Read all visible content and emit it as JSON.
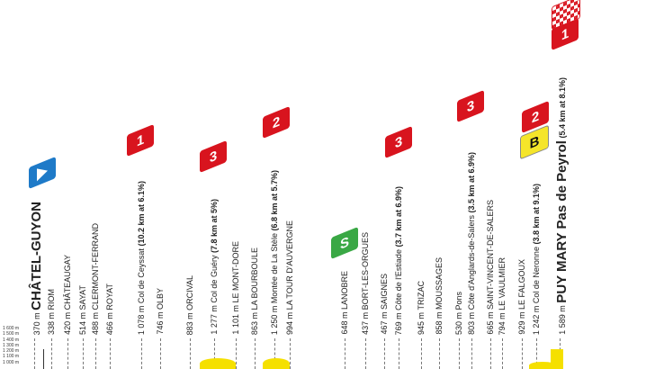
{
  "axis_labels": [
    "1 600 m",
    "1 500 m",
    "1 400 m",
    "1 300 m",
    "1 200 m",
    "1 100 m",
    "1 000 m"
  ],
  "colors": {
    "climb": "#d8141e",
    "sprint": "#3aa845",
    "bonus": "#f5e52a",
    "start": "#1e7ac8",
    "profile": "#f5e000"
  },
  "waypoints": [
    {
      "alt": "370 m",
      "name": "CHÂTEL-GUYON",
      "detail": "",
      "type": "start"
    },
    {
      "alt": "338 m",
      "name": "RIOM",
      "detail": ""
    },
    {
      "alt": "420 m",
      "name": "CHÂTEAUGAY",
      "detail": ""
    },
    {
      "alt": "514 m",
      "name": "SAYAT",
      "detail": ""
    },
    {
      "alt": "488 m",
      "name": "CLERMONT-FERRAND",
      "detail": ""
    },
    {
      "alt": "466 m",
      "name": "ROYAT",
      "detail": ""
    },
    {
      "alt": "1 078 m",
      "name": "Col de Ceyssat",
      "detail": "(10.2 km at 6.1%)"
    },
    {
      "alt": "746 m",
      "name": "OLBY",
      "detail": ""
    },
    {
      "alt": "883 m",
      "name": "ORCIVAL",
      "detail": ""
    },
    {
      "alt": "1 277 m",
      "name": "Col de Guéry",
      "detail": "(7.8 km at 5%)"
    },
    {
      "alt": "1 101 m",
      "name": "LE MONT-DORE",
      "detail": ""
    },
    {
      "alt": "863 m",
      "name": "LA BOURBOULE",
      "detail": ""
    },
    {
      "alt": "1 250 m",
      "name": "Montée de La Stèle",
      "detail": "(6.8 km at 5.7%)"
    },
    {
      "alt": "994 m",
      "name": "LA TOUR D'AUVERGNE",
      "detail": ""
    },
    {
      "alt": "648 m",
      "name": "LANOBRE",
      "detail": ""
    },
    {
      "alt": "437 m",
      "name": "BORT-LES-ORGUES",
      "detail": ""
    },
    {
      "alt": "467 m",
      "name": "SAIGNES",
      "detail": ""
    },
    {
      "alt": "769 m",
      "name": "Côte de l'Estiade",
      "detail": "(3.7 km at 6.9%)"
    },
    {
      "alt": "945 m",
      "name": "TRIZAC",
      "detail": ""
    },
    {
      "alt": "858 m",
      "name": "MOUSSAGES",
      "detail": ""
    },
    {
      "alt": "530 m",
      "name": "Pons",
      "detail": ""
    },
    {
      "alt": "803 m",
      "name": "Côte d'Anglards-de-Salers",
      "detail": "(3.5 km at 6.9%)"
    },
    {
      "alt": "665 m",
      "name": "SAINT-VINCENT-DE-SALERS",
      "detail": ""
    },
    {
      "alt": "794 m",
      "name": "LE VAULMIER",
      "detail": ""
    },
    {
      "alt": "929 m",
      "name": "LE FALGOUX",
      "detail": ""
    },
    {
      "alt": "1 242 m",
      "name": "Col de Neronne",
      "detail": "(3.8 km at 9.1%)"
    },
    {
      "alt": "1 589 m",
      "name": "PUY MARY Pas de Peyrol",
      "detail": "(5.4 km at 8.1%)",
      "type": "finish"
    }
  ],
  "markers": [
    {
      "label": "",
      "kind": "start"
    },
    {
      "label": "1",
      "kind": "climb"
    },
    {
      "label": "3",
      "kind": "climb"
    },
    {
      "label": "2",
      "kind": "climb"
    },
    {
      "label": "S",
      "kind": "sprint"
    },
    {
      "label": "3",
      "kind": "climb"
    },
    {
      "label": "3",
      "kind": "climb"
    },
    {
      "label": "2",
      "kind": "climb"
    },
    {
      "label": "B",
      "kind": "bonus"
    },
    {
      "label": "1",
      "kind": "climb"
    },
    {
      "label": "",
      "kind": "finish"
    }
  ]
}
